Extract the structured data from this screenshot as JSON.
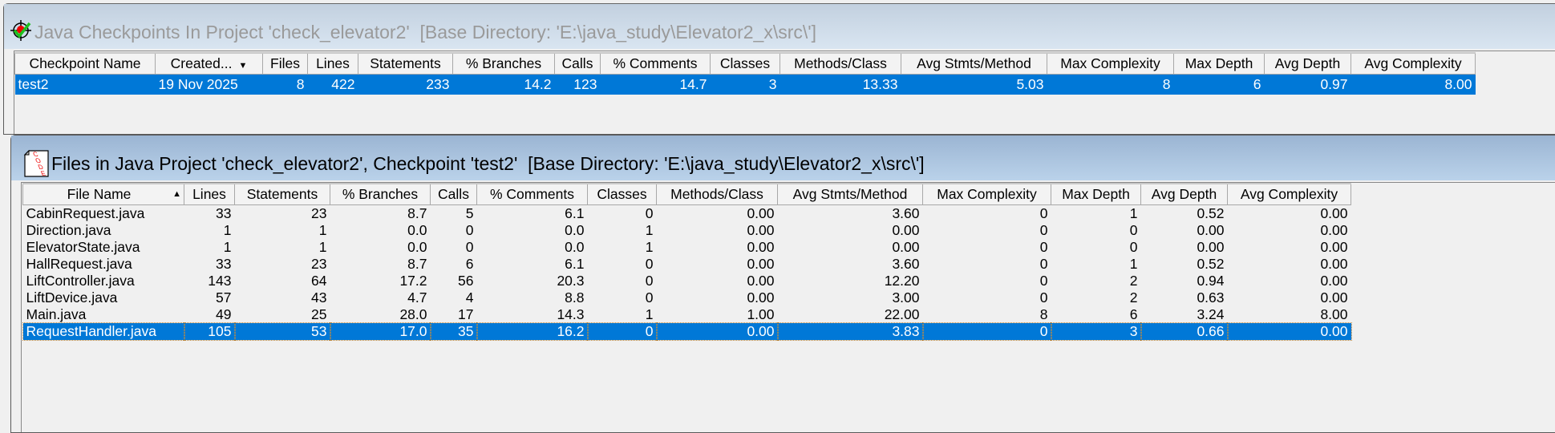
{
  "checkpoints_panel": {
    "title": "Java Checkpoints In Project 'check_elevator2'  [Base Directory: 'E:\\java_study\\Elevator2_x\\src\\']",
    "icon": "checkpoint-target-icon",
    "sort_indicator": "sort-descending-icon",
    "columns": [
      "Checkpoint Name",
      "Created...",
      "Files",
      "Lines",
      "Statements",
      "% Branches",
      "Calls",
      "% Comments",
      "Classes",
      "Methods/Class",
      "Avg Stmts/Method",
      "Max Complexity",
      "Max Depth",
      "Avg Depth",
      "Avg Complexity"
    ],
    "rows": [
      [
        "test2",
        "19 Nov 2025",
        "8",
        "422",
        "233",
        "14.2",
        "123",
        "14.7",
        "3",
        "13.33",
        "5.03",
        "8",
        "6",
        "0.97",
        "8.00"
      ]
    ],
    "selected_row": 0
  },
  "files_panel": {
    "title": "Files in Java Project 'check_elevator2', Checkpoint 'test2'  [Base Directory: 'E:\\java_study\\Elevator2_x\\src\\']",
    "icon": "code-file-icon",
    "icon_text": "CODE",
    "sort_indicator": "sort-ascending-icon",
    "columns": [
      "File Name",
      "Lines",
      "Statements",
      "% Branches",
      "Calls",
      "% Comments",
      "Classes",
      "Methods/Class",
      "Avg Stmts/Method",
      "Max Complexity",
      "Max Depth",
      "Avg Depth",
      "Avg Complexity"
    ],
    "rows": [
      [
        "CabinRequest.java",
        "33",
        "23",
        "8.7",
        "5",
        "6.1",
        "0",
        "0.00",
        "3.60",
        "0",
        "1",
        "0.52",
        "0.00"
      ],
      [
        "Direction.java",
        "1",
        "1",
        "0.0",
        "0",
        "0.0",
        "1",
        "0.00",
        "0.00",
        "0",
        "0",
        "0.00",
        "0.00"
      ],
      [
        "ElevatorState.java",
        "1",
        "1",
        "0.0",
        "0",
        "0.0",
        "1",
        "0.00",
        "0.00",
        "0",
        "0",
        "0.00",
        "0.00"
      ],
      [
        "HallRequest.java",
        "33",
        "23",
        "8.7",
        "6",
        "6.1",
        "0",
        "0.00",
        "3.60",
        "0",
        "1",
        "0.52",
        "0.00"
      ],
      [
        "LiftController.java",
        "143",
        "64",
        "17.2",
        "56",
        "20.3",
        "0",
        "0.00",
        "12.20",
        "0",
        "2",
        "0.94",
        "0.00"
      ],
      [
        "LiftDevice.java",
        "57",
        "43",
        "4.7",
        "4",
        "8.8",
        "0",
        "0.00",
        "3.00",
        "0",
        "2",
        "0.63",
        "0.00"
      ],
      [
        "Main.java",
        "49",
        "25",
        "28.0",
        "17",
        "14.3",
        "1",
        "1.00",
        "22.00",
        "8",
        "6",
        "3.24",
        "8.00"
      ],
      [
        "RequestHandler.java",
        "105",
        "53",
        "17.0",
        "35",
        "16.2",
        "0",
        "0.00",
        "3.83",
        "0",
        "3",
        "0.66",
        "0.00"
      ]
    ],
    "selected_row": 7
  },
  "colors": {
    "selection": "#0078d7",
    "active_titlebar": "#9bb5d3",
    "inactive_titlebar": "#c2d0df",
    "background": "#f0f0f0"
  }
}
